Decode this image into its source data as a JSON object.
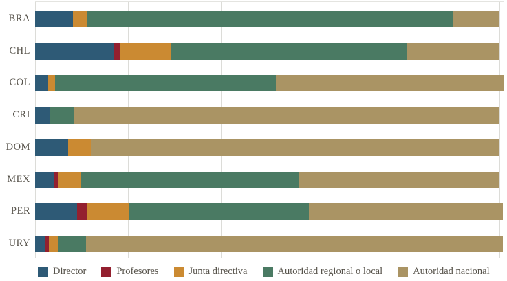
{
  "chart_data": {
    "type": "bar",
    "orientation": "horizontal",
    "stacked": true,
    "unit": "percent",
    "title": "",
    "xlabel": "",
    "ylabel": "",
    "xlim": [
      0,
      100
    ],
    "gridlines": [
      0,
      20,
      40,
      60,
      80,
      100
    ],
    "grid": "vertical-only",
    "legend_position": "bottom",
    "categories": [
      "BRA",
      "CHL",
      "COL",
      "CRI",
      "DOM",
      "MEX",
      "PER",
      "URY"
    ],
    "series": [
      {
        "name": "Director",
        "color": "#2e5a76",
        "values": [
          8.1,
          17.0,
          2.8,
          3.3,
          7.1,
          4.0,
          9.1,
          2.1
        ]
      },
      {
        "name": "Profesores",
        "color": "#93202f",
        "values": [
          0,
          1.2,
          0,
          0,
          0,
          1.1,
          2.0,
          0.8
        ]
      },
      {
        "name": "Junta directiva",
        "color": "#cb8a32",
        "values": [
          3.0,
          11.0,
          1.5,
          0,
          4.9,
          4.9,
          9.0,
          2.1
        ]
      },
      {
        "name": "Autoridad regional o local",
        "color": "#4a7a63",
        "values": [
          78.9,
          50.8,
          47.6,
          5.0,
          0,
          46.8,
          38.9,
          5.9
        ]
      },
      {
        "name": "Autoridad nacional",
        "color": "#aa9464",
        "values": [
          10.0,
          20.0,
          49.0,
          91.7,
          88.0,
          43.1,
          41.8,
          89.9
        ]
      }
    ]
  }
}
